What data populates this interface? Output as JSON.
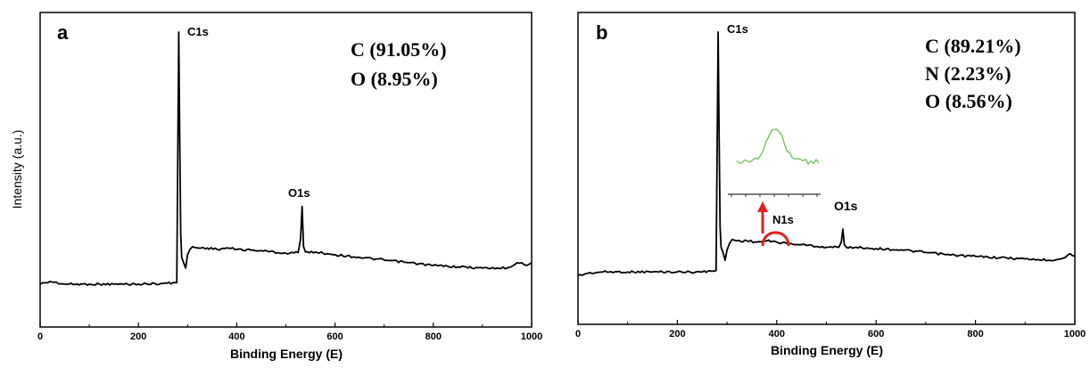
{
  "panels": [
    {
      "id": "a",
      "panel_label": "a",
      "ylabel": "Intensity (a.u.)",
      "xlabel": "Binding Energy (E)",
      "x_ticks": [
        "0",
        "200",
        "400",
        "600",
        "800",
        "1000"
      ],
      "peak_labels": [
        "C1s",
        "O1s"
      ],
      "composition": [
        "C (91.05%)",
        "O (8.95%)"
      ]
    },
    {
      "id": "b",
      "panel_label": "b",
      "xlabel": "Binding Energy (E)",
      "x_ticks": [
        "0",
        "200",
        "400",
        "600",
        "800",
        "1000"
      ],
      "peak_labels": [
        "C1s",
        "N1s",
        "O1s"
      ],
      "composition": [
        "C (89.21%)",
        "N (2.23%)",
        "O (8.56%)"
      ]
    }
  ],
  "colors": {
    "spectrum": "#000000",
    "inset": "#6fbf5a",
    "arrow": "#e02020"
  },
  "chart_data": [
    {
      "type": "line",
      "panel": "a",
      "xlabel": "Binding Energy (E)",
      "ylabel": "Intensity (a.u.)",
      "xlim": [
        0,
        1000
      ],
      "x_ticks": [
        0,
        200,
        400,
        600,
        800,
        1000
      ],
      "y_scale": "relative intensity (arbitrary units, no ticks)",
      "ylim": [
        0,
        100
      ],
      "series": [
        {
          "x": [
            0,
            10,
            20,
            50,
            100,
            150,
            200,
            250,
            278,
            282,
            284,
            286,
            288,
            292,
            296,
            300,
            305,
            310,
            320,
            340,
            360,
            380,
            400,
            450,
            500,
            525,
            530,
            533,
            536,
            540,
            560,
            600,
            650,
            700,
            750,
            800,
            850,
            900,
            950,
            970,
            980,
            990,
            1000
          ],
          "y": [
            6,
            6.5,
            7,
            6,
            6,
            6,
            6,
            6.3,
            6.5,
            100,
            60,
            25,
            16,
            14,
            12,
            17,
            19,
            20,
            19.5,
            19.5,
            19,
            19.5,
            19,
            18.5,
            17.5,
            17.8,
            23,
            35,
            20,
            18,
            18,
            17,
            16,
            15,
            14,
            13,
            12.5,
            12,
            12,
            14,
            14,
            13,
            14
          ]
        }
      ],
      "peaks": [
        {
          "label": "C1s",
          "x": 284,
          "y": 100
        },
        {
          "label": "O1s",
          "x": 533,
          "y": 35
        }
      ],
      "annotations": [
        "C (91.05%)",
        "O (8.95%)"
      ]
    },
    {
      "type": "line",
      "panel": "b",
      "xlabel": "Binding Energy (E)",
      "xlim": [
        0,
        1000
      ],
      "x_ticks": [
        0,
        200,
        400,
        600,
        800,
        1000
      ],
      "y_scale": "relative intensity (arbitrary units, no ticks)",
      "ylim": [
        0,
        100
      ],
      "series": [
        {
          "x": [
            0,
            20,
            50,
            100,
            150,
            200,
            250,
            278,
            282,
            284,
            286,
            288,
            292,
            296,
            300,
            305,
            310,
            320,
            340,
            360,
            380,
            400,
            420,
            450,
            500,
            525,
            530,
            533,
            536,
            540,
            560,
            600,
            650,
            700,
            750,
            800,
            850,
            900,
            950,
            980,
            990,
            1000
          ],
          "y": [
            6,
            7,
            7.5,
            7.5,
            7.5,
            7.5,
            7.5,
            8,
            100,
            60,
            25,
            17,
            15,
            12,
            16,
            18.5,
            20,
            19.5,
            19.5,
            19,
            19.5,
            19,
            18.5,
            18,
            17,
            17,
            19,
            24,
            18,
            17,
            17,
            16.5,
            16,
            15,
            14,
            13.5,
            13,
            12.5,
            12,
            13,
            14.5,
            13.5
          ]
        }
      ],
      "inset": {
        "color": "#6fbf5a",
        "y": [
          42,
          41,
          40,
          43,
          41,
          42,
          44,
          43,
          47,
          52,
          58,
          66,
          74,
          82,
          88,
          90,
          86,
          78,
          68,
          58,
          51,
          46,
          44,
          42,
          43,
          41,
          42,
          40,
          43,
          41,
          42,
          40
        ]
      },
      "peaks": [
        {
          "label": "C1s",
          "x": 284,
          "y": 100
        },
        {
          "label": "N1s",
          "x": 400,
          "y": 19.5
        },
        {
          "label": "O1s",
          "x": 533,
          "y": 24
        }
      ],
      "annotations": [
        "C (89.21%)",
        "N (2.23%)",
        "O (8.56%)"
      ]
    }
  ]
}
